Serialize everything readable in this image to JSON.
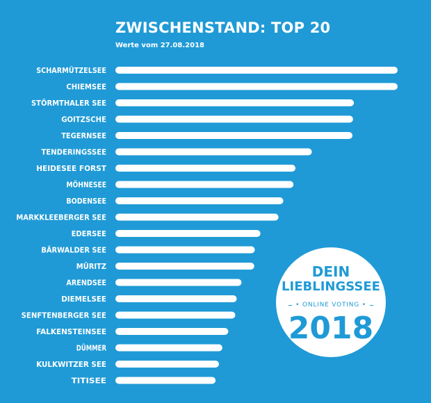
{
  "header": {
    "title": "ZWISCHENSTAND: TOP 20",
    "subtitle": "Werte vom 27.08.2018"
  },
  "badge": {
    "line1": "DEIN",
    "line2": "LIEBLINGSSEE",
    "line3": "• ONLINE VOTING •",
    "year": "2018"
  },
  "colors": {
    "background": "#1f9ad6",
    "bar": "#ffffff",
    "text": "#ffffff"
  },
  "chart_data": {
    "type": "bar",
    "orientation": "horizontal",
    "title": "ZWISCHENSTAND: TOP 20",
    "subtitle": "Werte vom 27.08.2018",
    "xlabel": "",
    "ylabel": "",
    "grid": false,
    "categories": [
      "SCHARMÜTZELSEE",
      "CHIEMSEE",
      "STÖRMTHALER SEE",
      "GOITZSCHE",
      "TEGERNSEE",
      "TENDERINGSSEE",
      "HEIDESEE FORST",
      "MÖHNESEE",
      "BODENSEE",
      "MARKKLEEBERGER SEE",
      "EDERSEE",
      "BÄRWALDER SEE",
      "MÜRITZ",
      "ARENDSEE",
      "DIEMELSEE",
      "SENFTENBERGER SEE",
      "FALKENSTEINSEE",
      "DÜMMER",
      "KULKWITZER SEE",
      "TITISEE"
    ],
    "values": [
      100,
      100,
      84.5,
      84.2,
      84.0,
      69.6,
      63.8,
      63.1,
      59.5,
      57.8,
      51.4,
      49.4,
      49.2,
      44.7,
      43.0,
      42.5,
      40.0,
      37.9,
      36.7,
      35.5
    ]
  }
}
